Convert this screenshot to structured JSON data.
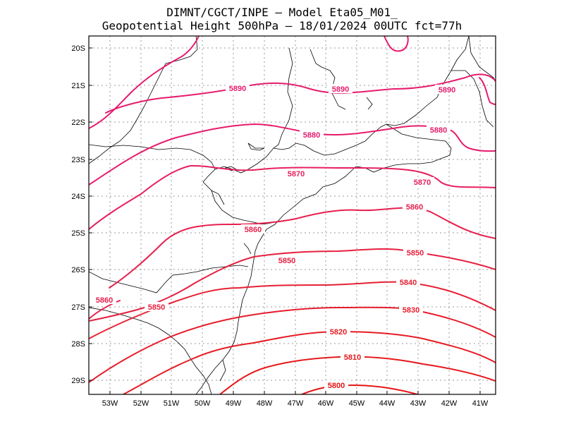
{
  "title_line1": "DIMNT/CGCT/INPE –  Model Eta05_M01_",
  "title_line2": "Geopotential Height 500hPa –  18/01/2024 00UTC fct=77h",
  "lat_labels": [
    "20S",
    "21S",
    "22S",
    "23S",
    "24S",
    "25S",
    "26S",
    "27S",
    "28S",
    "29S"
  ],
  "lon_labels": [
    "53W",
    "52W",
    "51W",
    "50W",
    "49W",
    "48W",
    "47W",
    "46W",
    "45W",
    "44W",
    "43W",
    "42W",
    "41W"
  ],
  "contour_labels": [
    {
      "text": "5890",
      "color": "#e61c6e"
    },
    {
      "text": "5890",
      "color": "#e61c6e"
    },
    {
      "text": "5890",
      "color": "#e61c6e"
    },
    {
      "text": "5880",
      "color": "#e61c6e"
    },
    {
      "text": "5880",
      "color": "#e61c6e"
    },
    {
      "text": "5870",
      "color": "#e6205e"
    },
    {
      "text": "5870",
      "color": "#e6205e"
    },
    {
      "text": "5860",
      "color": "#e6204e"
    },
    {
      "text": "5860",
      "color": "#e6204e"
    },
    {
      "text": "5860",
      "color": "#e6204e"
    },
    {
      "text": "5850",
      "color": "#e62040"
    },
    {
      "text": "5850",
      "color": "#e62040"
    },
    {
      "text": "5850",
      "color": "#e62040"
    },
    {
      "text": "5840",
      "color": "#e62034"
    },
    {
      "text": "5830",
      "color": "#e61c2c"
    },
    {
      "text": "5820",
      "color": "#e61c24"
    },
    {
      "text": "5810",
      "color": "#e6181c"
    },
    {
      "text": "5800",
      "color": "#e61414"
    }
  ]
}
